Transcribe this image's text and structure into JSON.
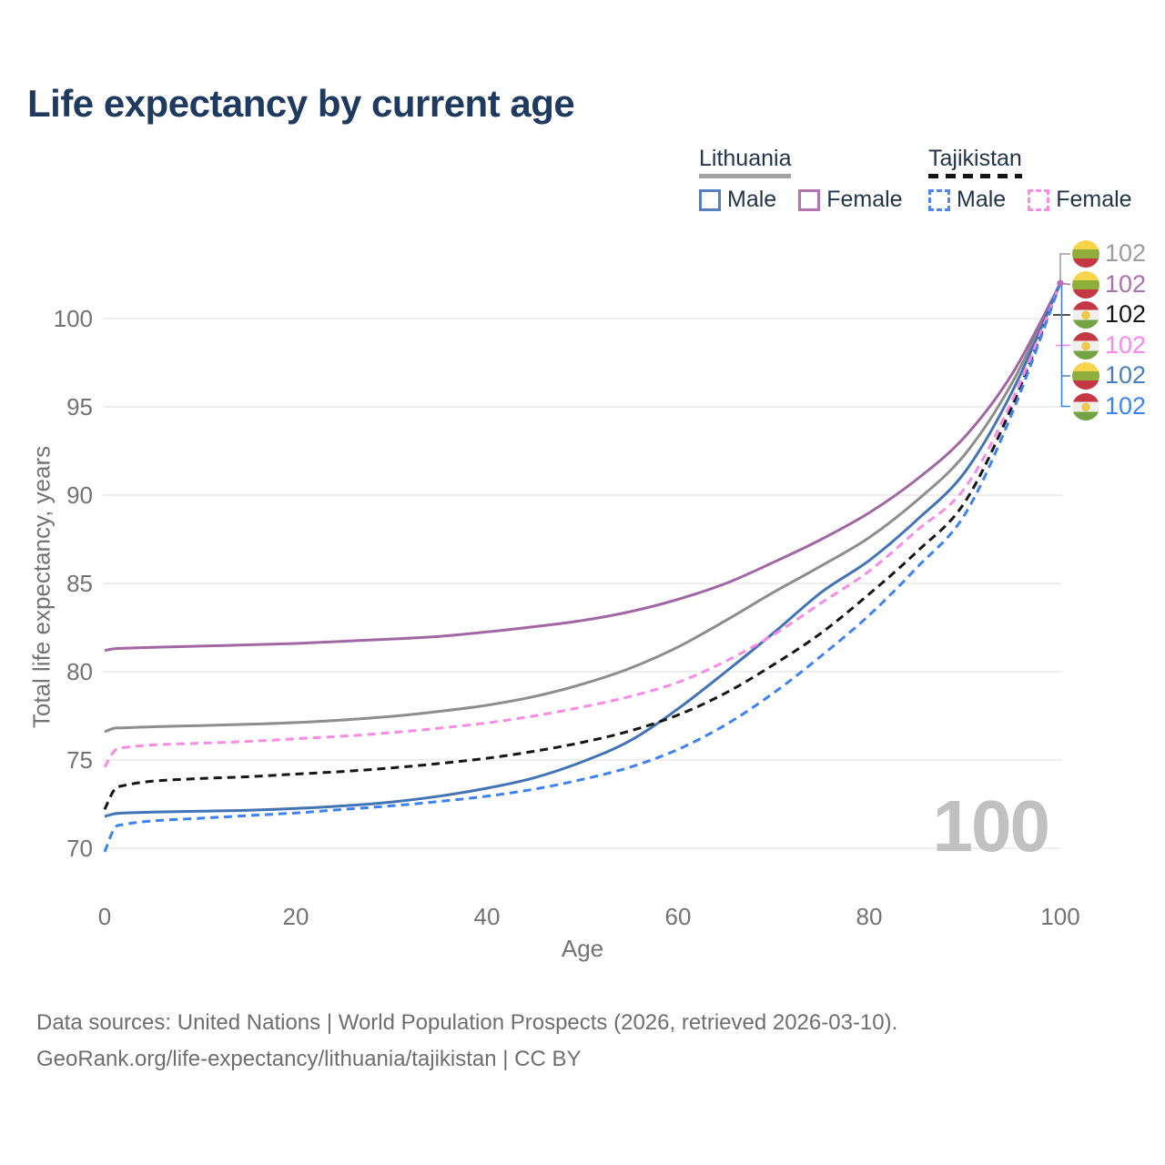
{
  "title": "Life expectancy by current age",
  "legend": {
    "groups": [
      {
        "country": "Lithuania",
        "line_style": "solid",
        "underline_color": "#A3A3A3",
        "items": [
          {
            "label": "Male",
            "color": "#5580BC"
          },
          {
            "label": "Female",
            "color": "#B274B0"
          }
        ]
      },
      {
        "country": "Tajikistan",
        "line_style": "dashed",
        "underline_color": "#141414",
        "items": [
          {
            "label": "Male",
            "color": "#4C87F0"
          },
          {
            "label": "Female",
            "color": "#FB8BE9"
          }
        ]
      }
    ]
  },
  "watermark": "100",
  "footer": {
    "line1": "Data sources: United Nations | World Population Prospects (2026, retrieved 2026-03-10).",
    "line2": "GeoRank.org/life-expectancy/lithuania/tajikistan | CC BY"
  },
  "chart_data": {
    "type": "line",
    "title": "Life expectancy by current age",
    "xlabel": "Age",
    "ylabel": "Total life expectancy, years",
    "x_ticks": [
      0,
      20,
      40,
      60,
      80,
      100
    ],
    "y_ticks": [
      70,
      75,
      80,
      85,
      90,
      95,
      100
    ],
    "xlim": [
      0,
      100
    ],
    "ylim": [
      69.5,
      103
    ],
    "grid": "horizontal",
    "x": [
      0,
      1,
      2,
      5,
      10,
      15,
      20,
      25,
      30,
      35,
      40,
      45,
      50,
      55,
      60,
      65,
      70,
      75,
      80,
      85,
      90,
      95,
      100
    ],
    "series": [
      {
        "name": "Lithuania",
        "country": "Lithuania",
        "sex": "Both",
        "color": "#8D8D8D",
        "dashed": false,
        "values": [
          76.6,
          76.8,
          76.82,
          76.88,
          76.95,
          77.02,
          77.12,
          77.27,
          77.47,
          77.75,
          78.1,
          78.6,
          79.3,
          80.2,
          81.4,
          82.9,
          84.5,
          86.0,
          87.6,
          89.7,
          92.3,
          96.4,
          102
        ]
      },
      {
        "name": "Lithuania Female",
        "country": "Lithuania",
        "sex": "Female",
        "color": "#A266A4",
        "dashed": false,
        "values": [
          81.2,
          81.3,
          81.33,
          81.38,
          81.45,
          81.52,
          81.6,
          81.72,
          81.85,
          82.0,
          82.25,
          82.55,
          82.9,
          83.4,
          84.1,
          85.0,
          86.2,
          87.5,
          89.0,
          90.9,
          93.3,
          96.9,
          102
        ]
      },
      {
        "name": "Lithuania Male",
        "country": "Lithuania",
        "sex": "Male",
        "color": "#4273B4",
        "dashed": false,
        "values": [
          71.8,
          71.95,
          72.0,
          72.05,
          72.1,
          72.15,
          72.25,
          72.4,
          72.62,
          72.95,
          73.4,
          74.0,
          74.9,
          76.1,
          77.9,
          80.0,
          82.2,
          84.5,
          86.3,
          88.6,
          91.3,
          95.9,
          102
        ]
      },
      {
        "name": "Tajikistan",
        "country": "Tajikistan",
        "sex": "Both",
        "color": "#161616",
        "dashed": true,
        "values": [
          72.2,
          73.3,
          73.55,
          73.8,
          73.95,
          74.05,
          74.2,
          74.35,
          74.55,
          74.8,
          75.1,
          75.5,
          76.0,
          76.65,
          77.55,
          78.8,
          80.4,
          82.2,
          84.4,
          86.8,
          89.6,
          95.1,
          102
        ]
      },
      {
        "name": "Tajikistan Female",
        "country": "Tajikistan",
        "sex": "Female",
        "color": "#F78BE6",
        "dashed": true,
        "values": [
          74.6,
          75.5,
          75.7,
          75.85,
          75.95,
          76.05,
          76.2,
          76.35,
          76.55,
          76.8,
          77.1,
          77.5,
          78.0,
          78.6,
          79.4,
          80.6,
          82.1,
          83.9,
          85.7,
          88.0,
          90.4,
          95.4,
          102
        ]
      },
      {
        "name": "Tajikistan Male",
        "country": "Tajikistan",
        "sex": "Male",
        "color": "#3D82F2",
        "dashed": true,
        "values": [
          69.8,
          71.1,
          71.35,
          71.55,
          71.7,
          71.85,
          72.0,
          72.2,
          72.4,
          72.65,
          72.95,
          73.35,
          73.9,
          74.6,
          75.6,
          77.0,
          78.8,
          80.9,
          83.2,
          85.9,
          88.9,
          94.7,
          102
        ]
      }
    ],
    "end_labels": [
      {
        "value": "102",
        "series": "Lithuania",
        "color": "#9C9C9C",
        "flag": "lithuania"
      },
      {
        "value": "102",
        "series": "Lithuania Female",
        "color": "#AC6FAE",
        "flag": "lithuania"
      },
      {
        "value": "102",
        "series": "Tajikistan",
        "color": "#161616",
        "flag": "tajikistan"
      },
      {
        "value": "102",
        "series": "Tajikistan Female",
        "color": "#FA87EC",
        "flag": "tajikistan"
      },
      {
        "value": "102",
        "series": "Lithuania Male",
        "color": "#4A7CBE",
        "flag": "lithuania"
      },
      {
        "value": "102",
        "series": "Tajikistan Male",
        "color": "#3D82F2",
        "flag": "tajikistan"
      }
    ]
  }
}
